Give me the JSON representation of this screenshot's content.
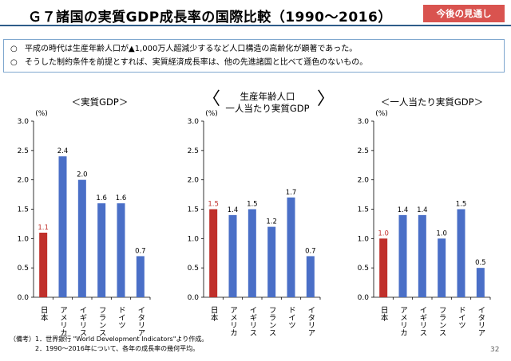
{
  "title": "Ｇ７諸国の実質GDP成長率の国際比較（1990〜2016）",
  "badge": "今後の見通し",
  "summary": {
    "items": [
      {
        "bullet": "○",
        "text": "平成の時代は生産年齢人口が▲1,000万人超減少するなど人口構造の高齢化が顕著であった。"
      },
      {
        "bullet": "○",
        "text": "そうした制約条件を前提とすれば、実質経済成長率は、他の先進諸国と比べて遜色のないもの。"
      }
    ]
  },
  "chart_titles": {
    "gdp": "＜実質GDP＞",
    "working_age_line1": "生産年齢人口",
    "working_age_line2": "一人当たり実質GDP",
    "bracket_left": "〈",
    "bracket_right": "〉",
    "per_capita": "＜一人当たり実質GDP＞"
  },
  "colors": {
    "highlight": "#c0302b",
    "bar": "#4a6fc7",
    "highlight_label": "#c0302b"
  },
  "chart_data": [
    {
      "type": "bar",
      "title": "＜実質GDP＞",
      "ylabel": "(%)",
      "ylim": [
        0,
        3.0
      ],
      "yticks": [
        "0.0",
        "0.5",
        "1.0",
        "1.5",
        "2.0",
        "2.5",
        "3.0"
      ],
      "categories": [
        "日本",
        "アメリカ",
        "イギリス",
        "フランス",
        "ドイツ",
        "イタリア"
      ],
      "values": [
        1.1,
        2.4,
        2.0,
        1.6,
        1.6,
        0.7
      ],
      "labels": [
        "1.1",
        "2.4",
        "2.0",
        "1.6",
        "1.6",
        "0.7"
      ],
      "highlight_index": 0
    },
    {
      "type": "bar",
      "title": "生産年齢人口一人当たり実質GDP",
      "ylabel": "(%)",
      "ylim": [
        0,
        3.0
      ],
      "yticks": [
        "0.0",
        "0.5",
        "1.0",
        "1.5",
        "2.0",
        "2.5",
        "3.0"
      ],
      "categories": [
        "日本",
        "アメリカ",
        "イギリス",
        "フランス",
        "ドイツ",
        "イタリア"
      ],
      "values": [
        1.5,
        1.4,
        1.5,
        1.2,
        1.7,
        0.7
      ],
      "labels": [
        "1.5",
        "1.4",
        "1.5",
        "1.2",
        "1.7",
        "0.7"
      ],
      "highlight_index": 0
    },
    {
      "type": "bar",
      "title": "＜一人当たり実質GDP＞",
      "ylabel": "(%)",
      "ylim": [
        0,
        3.0
      ],
      "yticks": [
        "0.0",
        "0.5",
        "1.0",
        "1.5",
        "2.0",
        "2.5",
        "3.0"
      ],
      "categories": [
        "日本",
        "アメリカ",
        "イギリス",
        "フランス",
        "ドイツ",
        "イタリア"
      ],
      "values": [
        1.0,
        1.4,
        1.4,
        1.0,
        1.5,
        0.5
      ],
      "labels": [
        "1.0",
        "1.4",
        "1.4",
        "1.0",
        "1.5",
        "0.5"
      ],
      "highlight_index": 0
    }
  ],
  "footnotes": [
    "（備考）1．世界銀行 \"World Development Indicators\"より作成。",
    "　　　　2．1990〜2016年について、各年の成長率の幾何平均。"
  ],
  "page_number": "32"
}
